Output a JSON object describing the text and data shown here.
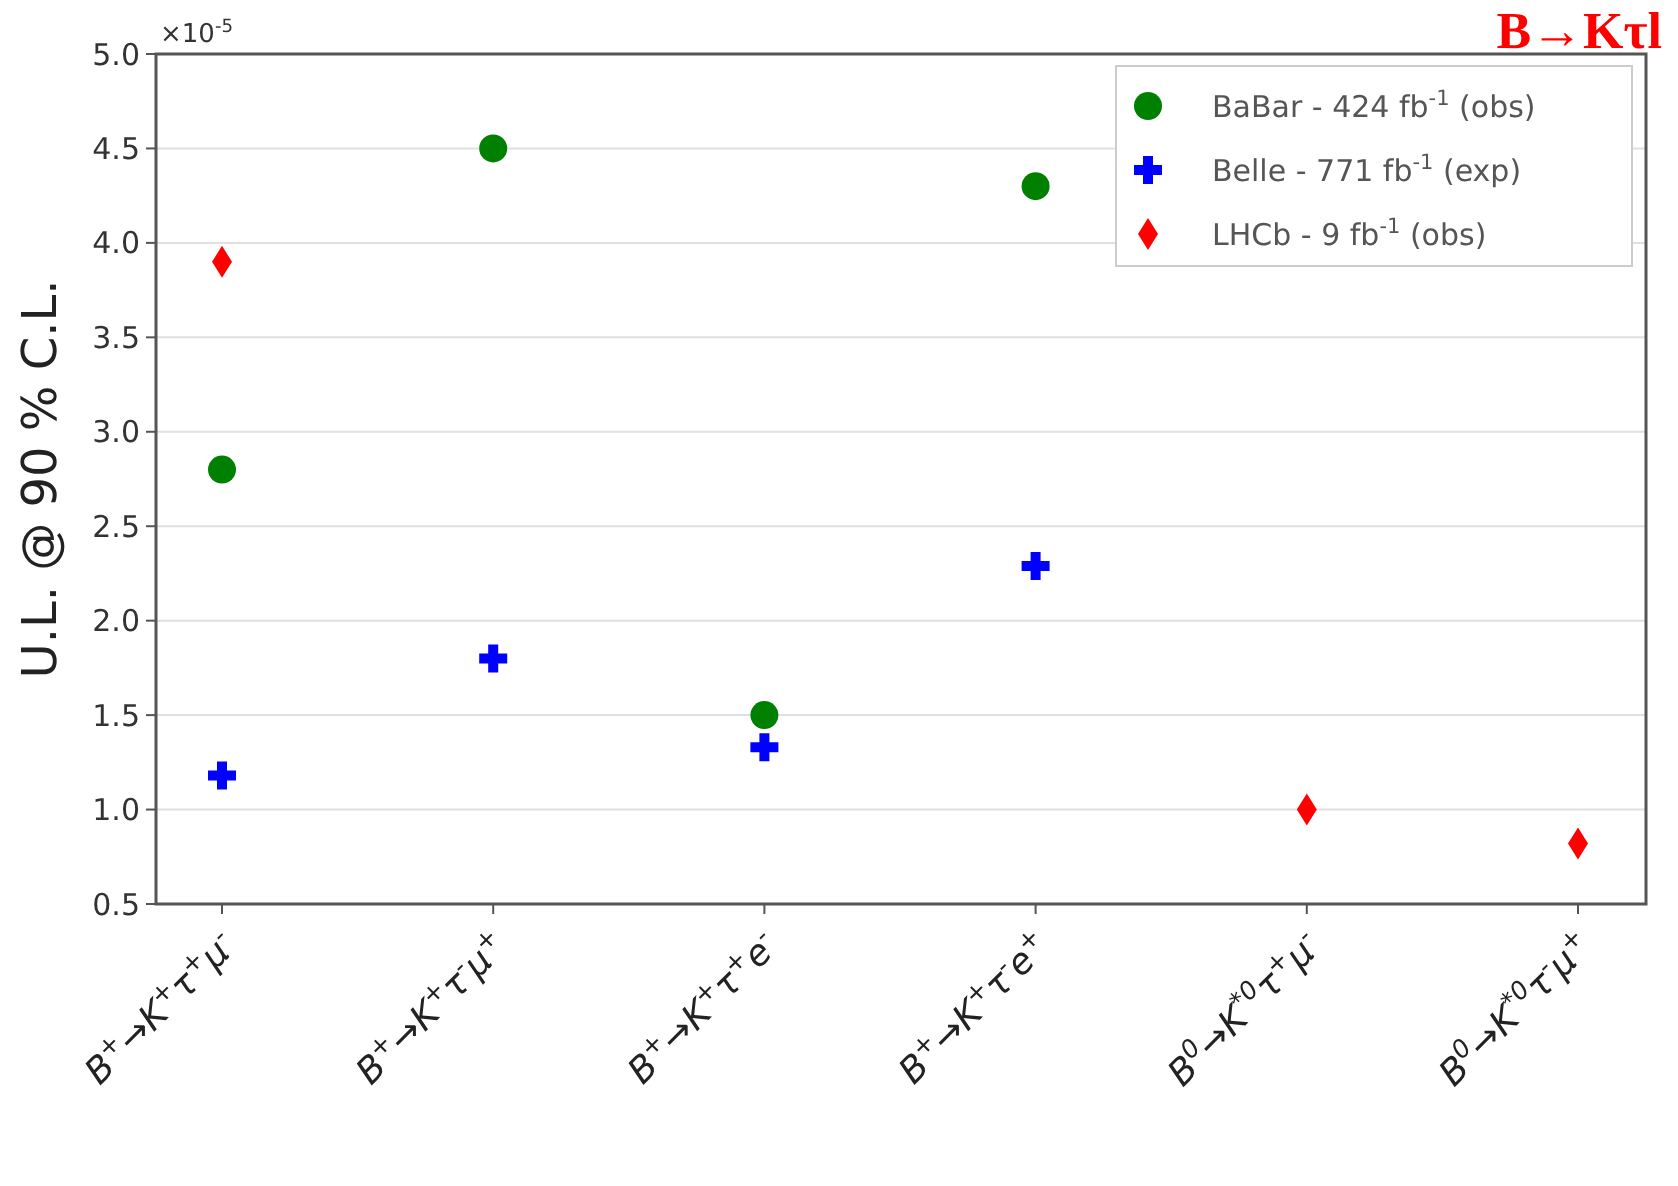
{
  "chart_data": {
    "type": "scatter",
    "title": "B→Kτl",
    "ylabel": "U.L. @ 90 % C.L.",
    "annotations": [
      "×10$^{-5}$"
    ],
    "categories": [
      "B$^{+}$→K$^{+}$τ$^{+}$μ$^{-}$",
      "B$^{+}$→K$^{+}$τ$^{-}$μ$^{+}$",
      "B$^{+}$→K$^{+}$τ$^{+}$e$^{-}$",
      "B$^{+}$→K$^{+}$τ$^{-}$e$^{+}$",
      "B$^{0}$→K$^{*0}$τ$^{+}$μ$^{-}$",
      "B$^{0}$→K$^{*0}$τ$^{-}$μ$^{+}$"
    ],
    "series": [
      {
        "name": "BaBar - 424 fb$^{-1}$ (obs)",
        "color": "#008000",
        "marker": "circle",
        "values": [
          2.8,
          4.5,
          1.5,
          4.3,
          null,
          null
        ]
      },
      {
        "name": "Belle - 771 fb$^{-1}$ (exp)",
        "color": "#0000ff",
        "marker": "cross",
        "values": [
          1.18,
          1.8,
          1.33,
          2.29,
          null,
          null
        ]
      },
      {
        "name": "LHCb - 9 fb$^{-1}$ (obs)",
        "color": "#ff0000",
        "marker": "diamond",
        "values": [
          3.9,
          null,
          null,
          null,
          1.0,
          0.82
        ]
      }
    ],
    "ylim": [
      0.5,
      5.0
    ],
    "yticks": [
      {
        "value": 0.5,
        "label": "0.5"
      },
      {
        "value": 1.0,
        "label": "1.0"
      },
      {
        "value": 1.5,
        "label": "1.5"
      },
      {
        "value": 2.0,
        "label": "2.0"
      },
      {
        "value": 2.5,
        "label": "2.5"
      },
      {
        "value": 3.0,
        "label": "3.0"
      },
      {
        "value": 3.5,
        "label": "3.5"
      },
      {
        "value": 4.0,
        "label": "4.0"
      },
      {
        "value": 4.5,
        "label": "4.5"
      },
      {
        "value": 5.0,
        "label": "5.0"
      }
    ],
    "grid": "y",
    "legend": "top right"
  }
}
